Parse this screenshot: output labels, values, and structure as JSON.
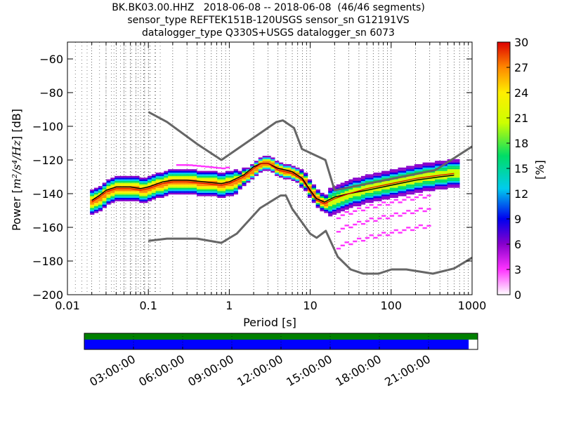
{
  "figure": {
    "title_lines": [
      "BK.BK03.00.HHZ   2018-06-08 -- 2018-06-08  (46/46 segments)",
      "sensor_type REFTEK151B-120USGS sensor_sn G12191VS",
      "datalogger_type Q330S+USGS datalogger_sn 6073"
    ]
  },
  "chart_data": {
    "type": "heatmap",
    "xlabel": "Period [s]",
    "ylabel": "Power [m²/s⁴/Hz] [dB]",
    "ylabel_parts": {
      "prefix": "Power [",
      "units": "m²/s⁴/Hz",
      "suffix": "] [dB]"
    },
    "x_scale": "log",
    "xlim": [
      0.01,
      1000
    ],
    "ylim": [
      -200,
      -50
    ],
    "x_ticks": [
      0.01,
      0.1,
      1,
      10,
      100,
      1000
    ],
    "x_tick_labels": [
      "0.01",
      "0.1",
      "1",
      "10",
      "100",
      "1000"
    ],
    "y_ticks": [
      -200,
      -180,
      -160,
      -140,
      -120,
      -100,
      -80,
      -60
    ],
    "y_tick_labels": [
      "−200",
      "−180",
      "−160",
      "−140",
      "−120",
      "−100",
      "−80",
      "−60"
    ],
    "grid": "dotted vertical lines at log-spaced periods",
    "colorbar": {
      "label": "[%]",
      "min": 0,
      "max": 30,
      "ticks": [
        0,
        3,
        6,
        9,
        12,
        15,
        18,
        21,
        24,
        27,
        30
      ],
      "tick_labels": [
        "0",
        "3",
        "6",
        "9",
        "12",
        "15",
        "18",
        "21",
        "24",
        "27",
        "30"
      ],
      "colormap": [
        "#ffffff",
        "#ff33ff",
        "#8800cc",
        "#0000ee",
        "#00ccee",
        "#00dd66",
        "#ccff00",
        "#ffee00",
        "#ff8800",
        "#dd0000"
      ]
    },
    "noise_models": {
      "color": "#666666",
      "high": [
        [
          0.1,
          -91.5
        ],
        [
          0.17,
          -97.4
        ],
        [
          0.4,
          -110.5
        ],
        [
          0.8,
          -120
        ],
        [
          3.8,
          -97.5
        ],
        [
          4.6,
          -96.5
        ],
        [
          6.3,
          -101
        ],
        [
          7.9,
          -113.5
        ],
        [
          15.4,
          -120
        ],
        [
          20,
          -138
        ],
        [
          354,
          -126
        ],
        [
          1000,
          -112
        ]
      ],
      "low": [
        [
          0.1,
          -168
        ],
        [
          0.17,
          -166.7
        ],
        [
          0.4,
          -166.7
        ],
        [
          0.8,
          -169.2
        ],
        [
          1.24,
          -163.7
        ],
        [
          2.4,
          -148.6
        ],
        [
          4.3,
          -141.1
        ],
        [
          5,
          -141.1
        ],
        [
          6,
          -149
        ],
        [
          10,
          -163.8
        ],
        [
          12,
          -166.2
        ],
        [
          15.6,
          -162.1
        ],
        [
          21.9,
          -177.5
        ],
        [
          31.6,
          -185
        ],
        [
          45,
          -187.5
        ],
        [
          70,
          -187.5
        ],
        [
          101,
          -185
        ],
        [
          154,
          -185
        ],
        [
          328,
          -187.5
        ],
        [
          600,
          -184.4
        ],
        [
          1000,
          -178
        ]
      ]
    },
    "median_curve": {
      "color": "#000000",
      "points": [
        [
          0.02,
          -144
        ],
        [
          0.025,
          -141
        ],
        [
          0.03,
          -138
        ],
        [
          0.04,
          -136
        ],
        [
          0.06,
          -136
        ],
        [
          0.08,
          -137
        ],
        [
          0.1,
          -136
        ],
        [
          0.15,
          -133
        ],
        [
          0.2,
          -132
        ],
        [
          0.3,
          -132
        ],
        [
          0.5,
          -133
        ],
        [
          0.8,
          -134
        ],
        [
          1,
          -133
        ],
        [
          1.5,
          -129
        ],
        [
          2,
          -124
        ],
        [
          2.5,
          -122
        ],
        [
          3,
          -122
        ],
        [
          4,
          -125
        ],
        [
          5,
          -126
        ],
        [
          6,
          -127
        ],
        [
          8,
          -131
        ],
        [
          10,
          -138
        ],
        [
          12,
          -143
        ],
        [
          15,
          -145
        ],
        [
          20,
          -142
        ],
        [
          30,
          -140
        ],
        [
          50,
          -138
        ],
        [
          100,
          -135
        ],
        [
          200,
          -132
        ],
        [
          400,
          -130
        ],
        [
          600,
          -129
        ]
      ]
    },
    "mode_curve": {
      "color": "#dd0000",
      "points": [
        [
          0.02,
          -145
        ],
        [
          0.025,
          -142
        ],
        [
          0.03,
          -139
        ],
        [
          0.04,
          -137
        ],
        [
          0.06,
          -137
        ],
        [
          0.08,
          -138
        ],
        [
          0.1,
          -137
        ],
        [
          0.15,
          -134
        ],
        [
          0.2,
          -133
        ],
        [
          0.3,
          -133
        ],
        [
          0.5,
          -134
        ],
        [
          0.8,
          -135
        ],
        [
          1,
          -134
        ],
        [
          1.5,
          -130
        ],
        [
          2,
          -125
        ],
        [
          2.5,
          -122
        ],
        [
          3,
          -122
        ],
        [
          4,
          -126
        ],
        [
          5,
          -127
        ],
        [
          6,
          -128
        ],
        [
          8,
          -132
        ],
        [
          10,
          -139
        ],
        [
          12,
          -144
        ],
        [
          15,
          -146
        ],
        [
          20,
          -143
        ],
        [
          30,
          -140
        ],
        [
          50,
          -137
        ],
        [
          100,
          -134
        ],
        [
          200,
          -131
        ],
        [
          400,
          -129
        ],
        [
          600,
          -128
        ]
      ]
    }
  },
  "timeline": {
    "tick_labels": [
      "03:00:00",
      "06:00:00",
      "09:00:00",
      "12:00:00",
      "15:00:00",
      "18:00:00",
      "21:00:00"
    ],
    "data_coverage_fraction": 1.0,
    "psd_coverage_fraction": 0.977,
    "data_color": "#008000",
    "psd_color": "#0000ff"
  }
}
